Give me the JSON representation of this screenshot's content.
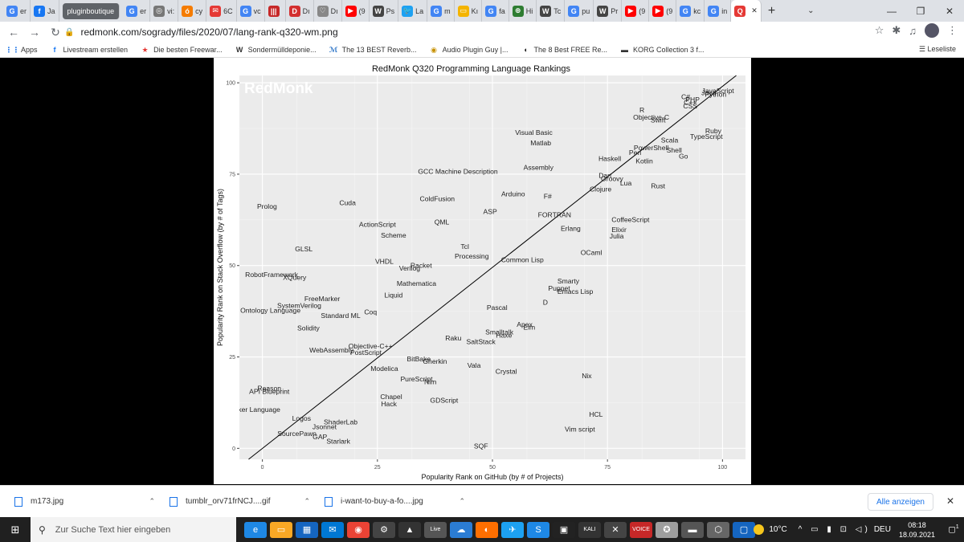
{
  "tabs": [
    {
      "label": "er",
      "color": "#4285f4",
      "glyph": "G"
    },
    {
      "label": "Ja",
      "color": "#1877f2",
      "glyph": "f"
    },
    {
      "label": "pluginboutique",
      "color": "#5f6368",
      "glyph": "",
      "pill": true
    },
    {
      "label": "er",
      "color": "#4285f4",
      "glyph": "G"
    },
    {
      "label": "vi:",
      "color": "#777",
      "glyph": "◎"
    },
    {
      "label": "cy",
      "color": "#f57c00",
      "glyph": "ó"
    },
    {
      "label": "6C",
      "color": "#e53935",
      "glyph": "✉"
    },
    {
      "label": "vc",
      "color": "#4285f4",
      "glyph": "G"
    },
    {
      "label": "",
      "color": "#c62828",
      "glyph": "|||"
    },
    {
      "label": "Dı",
      "color": "#d32f2f",
      "glyph": "D"
    },
    {
      "label": "Dı",
      "color": "#888",
      "glyph": "♡"
    },
    {
      "label": "(9",
      "color": "#ff0000",
      "glyph": "▶"
    },
    {
      "label": "Ps",
      "color": "#444",
      "glyph": "W"
    },
    {
      "label": "La",
      "color": "#1da1f2",
      "glyph": "🐦"
    },
    {
      "label": "m",
      "color": "#4285f4",
      "glyph": "G"
    },
    {
      "label": "Kı",
      "color": "#f4b400",
      "glyph": "▭"
    },
    {
      "label": "fa",
      "color": "#4285f4",
      "glyph": "G"
    },
    {
      "label": "Hi",
      "color": "#2e7d32",
      "glyph": "⊕"
    },
    {
      "label": "Tc",
      "color": "#444",
      "glyph": "W"
    },
    {
      "label": "pu",
      "color": "#4285f4",
      "glyph": "G"
    },
    {
      "label": "Pr",
      "color": "#444",
      "glyph": "W"
    },
    {
      "label": "(9",
      "color": "#ff0000",
      "glyph": "▶"
    },
    {
      "label": "(9",
      "color": "#ff0000",
      "glyph": "▶"
    },
    {
      "label": "kc",
      "color": "#4285f4",
      "glyph": "G"
    },
    {
      "label": "in",
      "color": "#4285f4",
      "glyph": "G"
    },
    {
      "label": "",
      "color": "#e53935",
      "glyph": "Q",
      "active": true
    }
  ],
  "toolbar": {
    "url": "redmonk.com/sogrady/files/2020/07/lang-rank-q320-wm.png"
  },
  "bookmarks": [
    {
      "label": "Apps",
      "icon": "⋮⋮",
      "color": "#1a73e8"
    },
    {
      "label": "Livestream erstellen",
      "icon": "f",
      "color": "#1877f2"
    },
    {
      "label": "Die besten Freewar...",
      "icon": "★",
      "color": "#e53935"
    },
    {
      "label": "Sondermülldeponie...",
      "icon": "W",
      "color": "#333"
    },
    {
      "label": "The 13 BEST Reverb...",
      "icon": "ℳ",
      "color": "#1565c0"
    },
    {
      "label": "Audio Plugin Guy |...",
      "icon": "◉",
      "color": "#c79100"
    },
    {
      "label": "The 8 Best FREE Re...",
      "icon": "◖",
      "color": "#222"
    },
    {
      "label": "KORG Collection 3 f...",
      "icon": "▬",
      "color": "#333"
    }
  ],
  "reading_list": "Leseliste",
  "chart_data": {
    "type": "scatter",
    "title": "RedMonk Q320 Programming Language Rankings",
    "watermark": "RedMonk",
    "xlabel": "Popularity Rank on GitHub (by # of Projects)",
    "ylabel": "Popularity Rank on Stack Overflow (by # of Tags)",
    "xlim": [
      -5,
      105
    ],
    "ylim": [
      -3,
      102
    ],
    "xticks": [
      0,
      25,
      50,
      75,
      100
    ],
    "yticks": [
      0,
      25,
      50,
      75,
      100
    ],
    "grid": true,
    "legend": "none",
    "diagonal": [
      [
        -3,
        -3
      ],
      [
        103,
        102
      ]
    ],
    "points": [
      {
        "label": "JavaScript",
        "x": 99,
        "y": 97.8
      },
      {
        "label": "Java",
        "x": 97,
        "y": 97.3
      },
      {
        "label": "Python",
        "x": 98.5,
        "y": 96.8
      },
      {
        "label": "C#",
        "x": 92,
        "y": 96.2
      },
      {
        "label": "PHP",
        "x": 93.5,
        "y": 95.4
      },
      {
        "label": "C++",
        "x": 93,
        "y": 94.6
      },
      {
        "label": "CSS",
        "x": 93,
        "y": 93.6
      },
      {
        "label": "R",
        "x": 82.5,
        "y": 92.5
      },
      {
        "label": "Objective-C",
        "x": 84.5,
        "y": 90.6
      },
      {
        "label": "Swift",
        "x": 86,
        "y": 89.8
      },
      {
        "label": "Ruby",
        "x": 98,
        "y": 86.8
      },
      {
        "label": "TypeScript",
        "x": 96.5,
        "y": 85.3
      },
      {
        "label": "Scala",
        "x": 88.5,
        "y": 84.3
      },
      {
        "label": "PowerShell",
        "x": 84.5,
        "y": 82.2
      },
      {
        "label": "Shell",
        "x": 89.5,
        "y": 81.6
      },
      {
        "label": "Perl",
        "x": 81,
        "y": 80.9
      },
      {
        "label": "Go",
        "x": 91.5,
        "y": 79.9
      },
      {
        "label": "Haskell",
        "x": 75.5,
        "y": 79.3
      },
      {
        "label": "Kotlin",
        "x": 83,
        "y": 78.6
      },
      {
        "label": "Visual Basic",
        "x": 59,
        "y": 86.4
      },
      {
        "label": "Matlab",
        "x": 60.5,
        "y": 83.5
      },
      {
        "label": "Assembly",
        "x": 60,
        "y": 76.9
      },
      {
        "label": "GCC Machine Description",
        "x": 42.5,
        "y": 75.8
      },
      {
        "label": "Dart",
        "x": 74.5,
        "y": 74.6
      },
      {
        "label": "Groovy",
        "x": 76,
        "y": 73.8
      },
      {
        "label": "Lua",
        "x": 79,
        "y": 72.6
      },
      {
        "label": "Clojure",
        "x": 73.5,
        "y": 70.9
      },
      {
        "label": "Rust",
        "x": 86,
        "y": 71.8
      },
      {
        "label": "Arduino",
        "x": 54.5,
        "y": 69.6
      },
      {
        "label": "F#",
        "x": 62,
        "y": 68.9
      },
      {
        "label": "ColdFusion",
        "x": 38,
        "y": 68.3
      },
      {
        "label": "Cuda",
        "x": 18.5,
        "y": 67.2
      },
      {
        "label": "Prolog",
        "x": 1,
        "y": 66.2
      },
      {
        "label": "ASP",
        "x": 49.5,
        "y": 64.8
      },
      {
        "label": "FORTRAN",
        "x": 63.5,
        "y": 63.9
      },
      {
        "label": "CoffeeScript",
        "x": 80,
        "y": 62.6
      },
      {
        "label": "QML",
        "x": 39,
        "y": 61.9
      },
      {
        "label": "ActionScript",
        "x": 25,
        "y": 61.2
      },
      {
        "label": "Erlang",
        "x": 67,
        "y": 60.1
      },
      {
        "label": "Elixir",
        "x": 77.5,
        "y": 59.8
      },
      {
        "label": "Scheme",
        "x": 28.5,
        "y": 58.3
      },
      {
        "label": "Julia",
        "x": 77,
        "y": 58.1
      },
      {
        "label": "Tcl",
        "x": 44,
        "y": 55.2
      },
      {
        "label": "GLSL",
        "x": 9,
        "y": 54.6
      },
      {
        "label": "OCaml",
        "x": 71.5,
        "y": 53.6
      },
      {
        "label": "Processing",
        "x": 45.5,
        "y": 52.6
      },
      {
        "label": "Common Lisp",
        "x": 56.5,
        "y": 51.6
      },
      {
        "label": "VHDL",
        "x": 26.5,
        "y": 51.1
      },
      {
        "label": "Racket",
        "x": 34.5,
        "y": 50.1
      },
      {
        "label": "Verilog",
        "x": 32,
        "y": 49.3
      },
      {
        "label": "RobotFramework",
        "x": 2,
        "y": 47.5
      },
      {
        "label": "XQuery",
        "x": 7,
        "y": 46.8
      },
      {
        "label": "Smarty",
        "x": 66.5,
        "y": 45.8
      },
      {
        "label": "Mathematica",
        "x": 33.5,
        "y": 45.1
      },
      {
        "label": "Puppet",
        "x": 64.5,
        "y": 43.8
      },
      {
        "label": "Emacs Lisp",
        "x": 68,
        "y": 42.9
      },
      {
        "label": "Liquid",
        "x": 28.5,
        "y": 41.9
      },
      {
        "label": "FreeMarker",
        "x": 13,
        "y": 40.9
      },
      {
        "label": "D",
        "x": 61.5,
        "y": 39.9
      },
      {
        "label": "SystemVerilog",
        "x": 8,
        "y": 39.1
      },
      {
        "label": "Pascal",
        "x": 51,
        "y": 38.5
      },
      {
        "label": "Web Ontology Language",
        "x": 0,
        "y": 37.8
      },
      {
        "label": "Coq",
        "x": 23.5,
        "y": 37.3
      },
      {
        "label": "Standard ML",
        "x": 17,
        "y": 36.3
      },
      {
        "label": "Apex",
        "x": 57,
        "y": 33.9
      },
      {
        "label": "Elm",
        "x": 58,
        "y": 33.1
      },
      {
        "label": "Solidity",
        "x": 10,
        "y": 32.9
      },
      {
        "label": "Smalltalk",
        "x": 51.5,
        "y": 31.8
      },
      {
        "label": "Haxe",
        "x": 52.5,
        "y": 30.9
      },
      {
        "label": "Raku",
        "x": 41.5,
        "y": 30.2
      },
      {
        "label": "SaltStack",
        "x": 47.5,
        "y": 29.2
      },
      {
        "label": "Objective-C++",
        "x": 23.5,
        "y": 28.0
      },
      {
        "label": "WebAssembly",
        "x": 15,
        "y": 26.9
      },
      {
        "label": "PostScript",
        "x": 22.5,
        "y": 26.2
      },
      {
        "label": "BitBake",
        "x": 34,
        "y": 24.5
      },
      {
        "label": "Gherkin",
        "x": 37.5,
        "y": 23.8
      },
      {
        "label": "Vala",
        "x": 46,
        "y": 22.7
      },
      {
        "label": "Modelica",
        "x": 26.5,
        "y": 21.8
      },
      {
        "label": "Crystal",
        "x": 53,
        "y": 21.0
      },
      {
        "label": "Nix",
        "x": 70.5,
        "y": 19.9
      },
      {
        "label": "PureScript",
        "x": 33.5,
        "y": 19.0
      },
      {
        "label": "Nim",
        "x": 36.5,
        "y": 18.2
      },
      {
        "label": "Reason",
        "x": 1.5,
        "y": 16.4
      },
      {
        "label": "API Blueprint",
        "x": 1.5,
        "y": 15.6
      },
      {
        "label": "Chapel",
        "x": 28,
        "y": 14.1
      },
      {
        "label": "GDScript",
        "x": 39.5,
        "y": 13.1
      },
      {
        "label": "Hack",
        "x": 27.5,
        "y": 12.2
      },
      {
        "label": "Game Maker Language",
        "x": -4,
        "y": 10.6
      },
      {
        "label": "HCL",
        "x": 72.5,
        "y": 9.3
      },
      {
        "label": "Logos",
        "x": 8.5,
        "y": 8.2
      },
      {
        "label": "ShaderLab",
        "x": 17,
        "y": 7.2
      },
      {
        "label": "Jsonnet",
        "x": 13.5,
        "y": 5.9
      },
      {
        "label": "Vim script",
        "x": 69,
        "y": 5.2
      },
      {
        "label": "SourcePawn",
        "x": 7.5,
        "y": 4.0
      },
      {
        "label": "GAP",
        "x": 12.5,
        "y": 3.2
      },
      {
        "label": "Starlark",
        "x": 16.5,
        "y": 1.9
      },
      {
        "label": "SQF",
        "x": 47.5,
        "y": 0.6
      }
    ]
  },
  "downloads": [
    {
      "name": "m173.jpg"
    },
    {
      "name": "tumblr_orv71frNCJ....gif"
    },
    {
      "name": "i-want-to-buy-a-fo....jpg"
    }
  ],
  "downloads_show_all": "Alle anzeigen",
  "taskbar": {
    "search_placeholder": "Zur Suche Text hier eingeben",
    "apps": [
      "e",
      "▭",
      "▦",
      "✉",
      "◉",
      "⚙",
      "▲",
      "Live",
      "☁",
      "◐",
      "✈",
      "S",
      "▣",
      "KALI",
      "✕",
      "VOICE",
      "✪",
      "▬",
      "⬡",
      "▢"
    ],
    "temperature": "10°C",
    "lang": "DEU",
    "time": "08:18",
    "date": "18.09.2021",
    "notification_count": "1"
  }
}
